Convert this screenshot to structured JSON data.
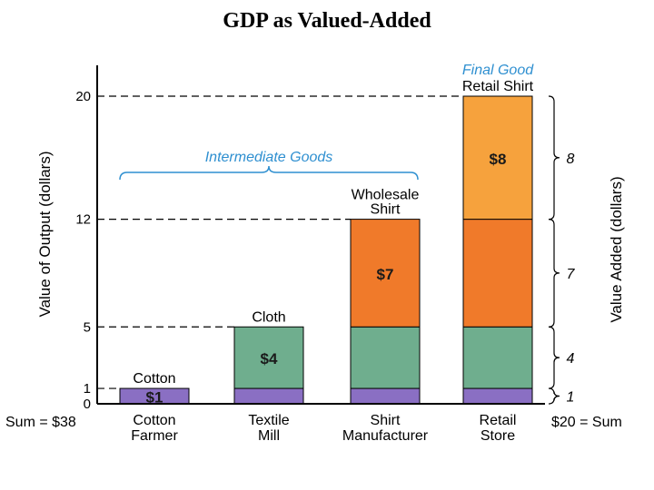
{
  "page": {
    "title": "GDP as Valued-Added"
  },
  "chart_data": {
    "type": "bar",
    "stacked": true,
    "ylabel": "Value of Output (dollars)",
    "y2label": "Value Added (dollars)",
    "yticks": [
      0,
      1,
      5,
      12,
      20
    ],
    "ylim": [
      0,
      20
    ],
    "categories": [
      {
        "name": "Cotton Farmer",
        "lines": [
          "Cotton",
          "Farmer"
        ],
        "top_label": [
          "Cotton"
        ],
        "value_added": 1,
        "output": 1,
        "value_label": "$1"
      },
      {
        "name": "Textile Mill",
        "lines": [
          "Textile",
          "Mill"
        ],
        "top_label": [
          "Cloth"
        ],
        "value_added": 4,
        "output": 5,
        "value_label": "$4"
      },
      {
        "name": "Shirt Manufacturer",
        "lines": [
          "Shirt",
          "Manufacturer"
        ],
        "top_label": [
          "Wholesale",
          "Shirt"
        ],
        "value_added": 7,
        "output": 12,
        "value_label": "$7"
      },
      {
        "name": "Retail Store",
        "lines": [
          "Retail",
          "Store"
        ],
        "top_label": [
          "Retail Shirt"
        ],
        "value_added": 8,
        "output": 20,
        "value_label": "$8"
      }
    ],
    "right_braces": [
      {
        "from": 0,
        "to": 1,
        "label": "1"
      },
      {
        "from": 1,
        "to": 5,
        "label": "4"
      },
      {
        "from": 5,
        "to": 12,
        "label": "7"
      },
      {
        "from": 12,
        "to": 20,
        "label": "8"
      }
    ],
    "annotations": {
      "intermediate": "Intermediate Goods",
      "final": "Final Good",
      "sum_left": "Sum = $38",
      "sum_right": "$20 = Sum"
    },
    "colors": {
      "layer_1": "#8a6fc3",
      "layer_4": "#6fae8e",
      "layer_7": "#f07a2a",
      "layer_8": "#f6a23d",
      "annotation_blue": "#2e8fd0",
      "axis": "#000000"
    }
  }
}
